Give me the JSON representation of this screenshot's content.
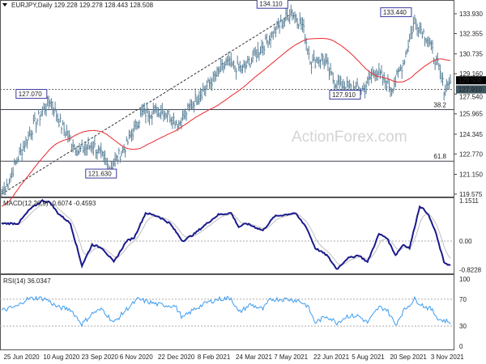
{
  "chart_data": {
    "type": "line",
    "title": "EURJPY,Daily 129.228 129.278 128.443 128.508",
    "watermark": "ActionForex.com",
    "bar_range": [
      0,
      352
    ],
    "x_labels": [
      {
        "bar": 1,
        "label": "25 Jun 2020"
      },
      {
        "bar": 32,
        "label": "10 Aug 2020"
      },
      {
        "bar": 62,
        "label": "23 Sep 2020"
      },
      {
        "bar": 92,
        "label": "6 Nov 2020"
      },
      {
        "bar": 122,
        "label": "22 Dec 2020"
      },
      {
        "bar": 153,
        "label": "8 Feb 2021"
      },
      {
        "bar": 183,
        "label": "24 Mar 2021"
      },
      {
        "bar": 213,
        "label": "7 May 2021"
      },
      {
        "bar": 244,
        "label": "22 Jun 2021"
      },
      {
        "bar": 274,
        "label": "5 Aug 2021"
      },
      {
        "bar": 304,
        "label": "20 Sep 2021"
      },
      {
        "bar": 336,
        "label": "3 Nov 2021"
      }
    ],
    "price": {
      "ylim": [
        119.575,
        135.0
      ],
      "yticks": [
        "133.930",
        "132.355",
        "130.735",
        "129.160",
        "127.540",
        "125.965",
        "124.345",
        "122.770",
        "121.150",
        "119.575"
      ],
      "current_price": "128.508",
      "support_price": "127.910",
      "bars": [
        0,
        3,
        13,
        25,
        38,
        47,
        60,
        72,
        85,
        98,
        110,
        126,
        139,
        151,
        164,
        176,
        189,
        202,
        214,
        227,
        236,
        243,
        252,
        261,
        274,
        284,
        293,
        306,
        315,
        324,
        334,
        343,
        347,
        352
      ],
      "closes": [
        119.8,
        120.0,
        122.5,
        125,
        127.07,
        125,
        123,
        123.5,
        121.63,
        123.5,
        126,
        126.3,
        125.2,
        127,
        128.5,
        130,
        129.5,
        131,
        132.5,
        134.11,
        133,
        130,
        130.5,
        128.5,
        128,
        127.91,
        129.5,
        128,
        130,
        133.44,
        132,
        129.5,
        128,
        128.508
      ],
      "annotations": [
        {
          "bar": 38,
          "price": 127.07,
          "label": "127.070"
        },
        {
          "bar": 85,
          "price": 121.63,
          "label": "121.630"
        },
        {
          "bar": 227,
          "price": 134.11,
          "label": "134.110"
        },
        {
          "bar": 284,
          "price": 127.91,
          "label": "127.910"
        },
        {
          "bar": 324,
          "price": 133.44,
          "label": "133.440"
        }
      ],
      "fib_levels": [
        {
          "label": "38.2",
          "price": 126.3
        },
        {
          "label": "61.8",
          "price": 122.2
        }
      ],
      "moving_average_color": "#e8282d",
      "bar_color": "#5a8199"
    },
    "macd": {
      "label": "MACD(12,26,9) -0.6074 -0.4593",
      "ylim": [
        -0.9,
        1.2
      ],
      "yticks": [
        "1.1511",
        "0.00",
        "-0.8228"
      ],
      "bars": [
        0,
        13,
        22,
        32,
        38,
        44,
        54,
        63,
        71,
        79,
        88,
        98,
        104,
        113,
        123,
        132,
        142,
        151,
        161,
        170,
        180,
        186,
        192,
        205,
        214,
        230,
        239,
        246,
        255,
        263,
        271,
        280,
        287,
        296,
        302,
        309,
        315,
        320,
        328,
        334,
        340,
        347,
        352
      ],
      "values": [
        0.5,
        0.5,
        0.9,
        1.15,
        1.1,
        0.8,
        0.5,
        -0.7,
        -0.1,
        -0.2,
        -0.6,
        0,
        0.1,
        0.8,
        0.7,
        0.5,
        0,
        0.2,
        0.5,
        0.75,
        0.8,
        0.4,
        0.5,
        0.3,
        0.7,
        0.8,
        0.4,
        -0.2,
        -0.4,
        -0.8,
        -0.5,
        -0.4,
        -0.6,
        0.2,
        0.1,
        -0.4,
        -0.1,
        -0.2,
        1.0,
        0.8,
        0.3,
        -0.6,
        -0.7
      ],
      "color": "#1a1a8c",
      "signal_color": "#c0c0c0"
    },
    "rsi": {
      "label": "RSI(14) 36.0347",
      "ylim": [
        0,
        100
      ],
      "yticks": [
        "100",
        "70",
        "30",
        "0"
      ],
      "bars": [
        0,
        13,
        19,
        28,
        35,
        44,
        54,
        63,
        72,
        79,
        88,
        98,
        107,
        123,
        136,
        142,
        151,
        161,
        170,
        180,
        186,
        195,
        205,
        211,
        224,
        233,
        240,
        246,
        255,
        263,
        271,
        280,
        287,
        296,
        302,
        309,
        315,
        324,
        331,
        337,
        343,
        352
      ],
      "values": [
        53,
        60,
        70,
        72,
        70,
        58,
        55,
        33,
        50,
        55,
        35,
        55,
        70,
        62,
        60,
        42,
        55,
        65,
        70,
        72,
        50,
        62,
        55,
        70,
        70,
        68,
        60,
        35,
        45,
        35,
        45,
        45,
        35,
        58,
        55,
        32,
        52,
        70,
        60,
        55,
        40,
        36
      ],
      "color": "#3c9cf0"
    }
  }
}
